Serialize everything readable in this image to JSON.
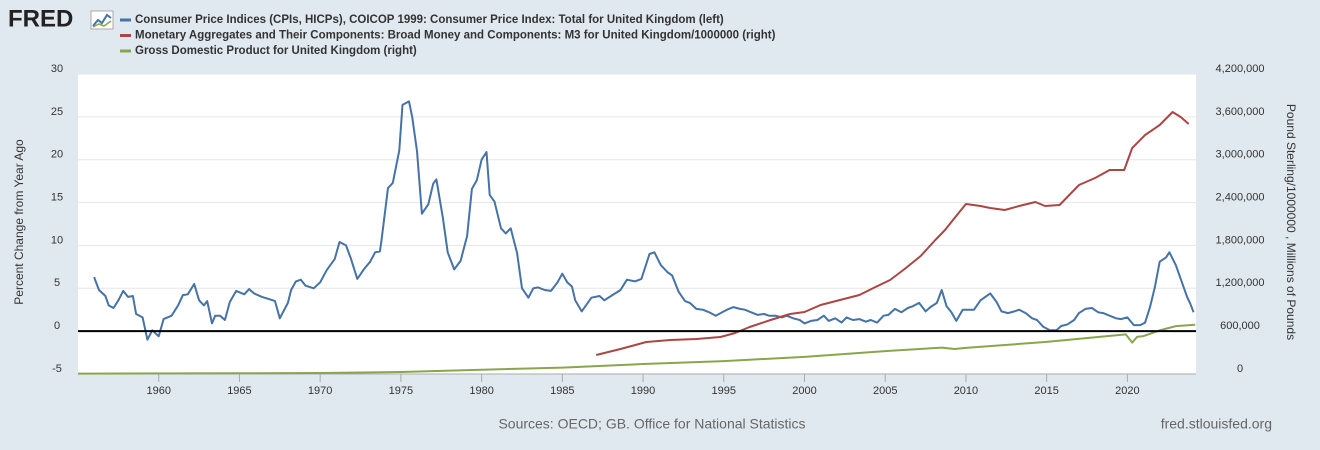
{
  "chart_data": {
    "type": "line",
    "logo": "FRED",
    "y_label": "Percent Change from Year Ago",
    "y2_label": "Pound Sterling/1000000 , Millions of Pounds",
    "source": "Sources: OECD; GB. Office for National Statistics",
    "credit": "fred.stlouisfed.org",
    "grid": true,
    "legend": "top-left",
    "xlim": [
      1955,
      2024.25
    ],
    "xticks": [
      1960,
      1965,
      1970,
      1975,
      1980,
      1985,
      1990,
      1995,
      2000,
      2005,
      2010,
      2015,
      2020
    ],
    "ylim": [
      -5,
      30
    ],
    "yticks": [
      -5,
      0,
      5,
      10,
      15,
      20,
      25,
      30
    ],
    "y2lim": [
      0,
      4200000
    ],
    "y2ticks": [
      0,
      {
        "value": 600000,
        "label": "600,000"
      },
      {
        "value": 1200000,
        "label": "1,200,000"
      },
      {
        "value": 1800000,
        "label": "1,800,000"
      },
      {
        "value": 2400000,
        "label": "2,400,000"
      },
      {
        "value": 3000000,
        "label": "3,000,000"
      },
      {
        "value": 3600000,
        "label": "3,600,000"
      },
      {
        "value": 4200000,
        "label": "4,200,000"
      }
    ],
    "series": [
      {
        "name": "Consumer Price Indices (CPIs, HICPs), COICOP 1999: Consumer Price Index: Total for United Kingdom (left)",
        "color": "#4572a7",
        "axis": "y",
        "x": [
          1956.0,
          1956.3,
          1956.7,
          1956.9,
          1957.2,
          1957.5,
          1957.8,
          1958.1,
          1958.4,
          1958.6,
          1959.0,
          1959.3,
          1959.6,
          1960.0,
          1960.3,
          1960.8,
          1961.2,
          1961.5,
          1961.8,
          1962.2,
          1962.5,
          1962.8,
          1963.0,
          1963.3,
          1963.5,
          1963.8,
          1964.1,
          1964.4,
          1964.8,
          1965.3,
          1965.6,
          1965.9,
          1966.4,
          1966.9,
          1967.2,
          1967.5,
          1968.0,
          1968.2,
          1968.5,
          1968.8,
          1969.1,
          1969.6,
          1970.0,
          1970.4,
          1970.9,
          1971.2,
          1971.6,
          1971.9,
          1972.3,
          1972.7,
          1973.1,
          1973.4,
          1973.7,
          1973.8,
          1974.2,
          1974.5,
          1974.9,
          1975.1,
          1975.5,
          1975.7,
          1976.0,
          1976.3,
          1976.7,
          1977.0,
          1977.2,
          1977.6,
          1977.9,
          1978.3,
          1978.7,
          1979.1,
          1979.4,
          1979.7,
          1980.0,
          1980.3,
          1980.5,
          1980.8,
          1981.2,
          1981.5,
          1981.8,
          1982.2,
          1982.5,
          1982.9,
          1983.2,
          1983.5,
          1983.9,
          1984.3,
          1984.7,
          1985.0,
          1985.3,
          1985.6,
          1985.8,
          1986.2,
          1986.8,
          1987.3,
          1987.6,
          1988.1,
          1988.6,
          1989.0,
          1989.5,
          1989.9,
          1990.4,
          1990.7,
          1991.1,
          1991.5,
          1991.8,
          1992.2,
          1992.6,
          1992.9,
          1993.3,
          1993.7,
          1994.1,
          1994.5,
          1994.9,
          1995.2,
          1995.6,
          1996.0,
          1996.3,
          1996.7,
          1997.1,
          1997.5,
          1997.8,
          1998.2,
          1998.6,
          1998.9,
          1999.3,
          1999.7,
          2000.0,
          2000.4,
          2000.8,
          2001.2,
          2001.5,
          2001.9,
          2002.3,
          2002.6,
          2003.0,
          2003.4,
          2003.8,
          2004.1,
          2004.5,
          2004.9,
          2005.2,
          2005.6,
          2006.0,
          2006.4,
          2006.7,
          2007.1,
          2007.5,
          2007.8,
          2008.2,
          2008.5,
          2008.8,
          2009.1,
          2009.4,
          2009.8,
          2010.1,
          2010.5,
          2010.9,
          2011.2,
          2011.5,
          2011.9,
          2012.2,
          2012.6,
          2013.0,
          2013.3,
          2013.7,
          2014.1,
          2014.4,
          2014.8,
          2015.2,
          2015.6,
          2015.9,
          2016.3,
          2016.7,
          2017.0,
          2017.4,
          2017.8,
          2018.2,
          2018.5,
          2018.9,
          2019.3,
          2019.6,
          2020.0,
          2020.4,
          2020.8,
          2021.1,
          2021.4,
          2021.7,
          2022.0,
          2022.4,
          2022.6,
          2023.0,
          2023.3,
          2023.7,
          2023.9,
          2024.1
        ],
        "values": [
          6.3,
          4.8,
          4.1,
          3.0,
          2.7,
          3.6,
          4.7,
          4.0,
          4.1,
          2.0,
          1.6,
          -1.0,
          0.1,
          -0.6,
          1.4,
          1.8,
          3.0,
          4.2,
          4.3,
          5.5,
          3.6,
          3.0,
          3.5,
          0.9,
          1.8,
          1.8,
          1.3,
          3.4,
          4.7,
          4.3,
          4.9,
          4.4,
          4.0,
          3.7,
          3.5,
          1.5,
          3.3,
          4.8,
          5.8,
          6.0,
          5.3,
          5.0,
          5.7,
          7.1,
          8.4,
          10.4,
          10.0,
          8.5,
          6.1,
          7.2,
          8.1,
          9.2,
          9.3,
          10.6,
          16.7,
          17.3,
          21.1,
          26.4,
          26.8,
          25.0,
          21.0,
          13.7,
          14.8,
          17.2,
          17.7,
          13.2,
          9.2,
          7.2,
          8.2,
          11.1,
          16.6,
          17.6,
          20.0,
          20.9,
          15.9,
          15.1,
          12.0,
          11.4,
          12.0,
          9.1,
          5.0,
          3.9,
          5.0,
          5.1,
          4.8,
          4.7,
          5.7,
          6.7,
          5.7,
          5.2,
          3.6,
          2.3,
          3.9,
          4.1,
          3.6,
          4.2,
          4.8,
          6.0,
          5.8,
          6.1,
          9.0,
          9.2,
          7.7,
          6.9,
          6.5,
          4.6,
          3.5,
          3.3,
          2.6,
          2.5,
          2.2,
          1.8,
          2.2,
          2.5,
          2.8,
          2.6,
          2.5,
          2.2,
          1.9,
          2.0,
          1.8,
          1.8,
          1.6,
          1.8,
          1.5,
          1.3,
          0.9,
          1.2,
          1.3,
          1.8,
          1.2,
          1.5,
          1.0,
          1.6,
          1.3,
          1.4,
          1.1,
          1.3,
          1.0,
          1.8,
          1.9,
          2.6,
          2.2,
          2.7,
          2.9,
          3.3,
          2.3,
          2.8,
          3.3,
          4.8,
          2.9,
          2.2,
          1.2,
          2.5,
          2.5,
          2.5,
          3.6,
          4.0,
          4.4,
          3.4,
          2.3,
          2.1,
          2.3,
          2.5,
          2.1,
          1.5,
          1.3,
          0.5,
          0.1,
          0.1,
          0.6,
          0.8,
          1.3,
          2.1,
          2.6,
          2.7,
          2.2,
          2.1,
          1.8,
          1.5,
          1.4,
          1.6,
          0.7,
          0.7,
          1.0,
          2.8,
          5.1,
          8.1,
          8.6,
          9.2,
          7.7,
          6.1,
          4.0,
          3.2,
          2.2
        ]
      },
      {
        "name": "Monetary Aggregates and Their Components: Broad Money and Components: M3 for United Kingdom/1000000 (right)",
        "color": "#aa4643",
        "axis": "y2",
        "x": [
          1987.1,
          1988.6,
          1990.2,
          1991.7,
          1993.3,
          1994.8,
          1995.7,
          1996.6,
          1997.9,
          1999.1,
          2000.0,
          2001.0,
          2002.2,
          2003.4,
          2004.4,
          2005.3,
          2006.2,
          2007.2,
          2008.1,
          2008.7,
          2009.3,
          2010.0,
          2010.9,
          2011.5,
          2012.4,
          2013.3,
          2014.3,
          2014.9,
          2015.8,
          2016.4,
          2017.0,
          2018.0,
          2018.9,
          2019.8,
          2020.3,
          2021.1,
          2022.0,
          2022.8,
          2023.3,
          2023.8
        ],
        "values": [
          266000,
          350000,
          448000,
          476000,
          490000,
          518000,
          574000,
          658000,
          756000,
          840000,
          868000,
          966000,
          1036000,
          1106000,
          1218000,
          1316000,
          1470000,
          1652000,
          1876000,
          2016000,
          2184000,
          2380000,
          2352000,
          2324000,
          2296000,
          2352000,
          2408000,
          2352000,
          2366000,
          2506000,
          2646000,
          2744000,
          2856000,
          2856000,
          3164000,
          3346000,
          3486000,
          3668000,
          3598000,
          3500000
        ]
      },
      {
        "name": "Gross Domestic Product for United Kingdom (right)",
        "color": "#89a54e",
        "axis": "y2",
        "x": [
          1955,
          1965,
          1970,
          1975,
          1980,
          1985,
          1990,
          1995,
          2000,
          2005,
          2008.5,
          2009.3,
          2010,
          2015,
          2019.9,
          2020.3,
          2020.6,
          2021,
          2022,
          2023,
          2024.2
        ],
        "values": [
          5000,
          10000,
          14000,
          28000,
          60000,
          90000,
          140000,
          180000,
          240000,
          320000,
          370000,
          350000,
          365000,
          450000,
          555000,
          440000,
          520000,
          530000,
          610000,
          670000,
          690000
        ]
      }
    ]
  }
}
